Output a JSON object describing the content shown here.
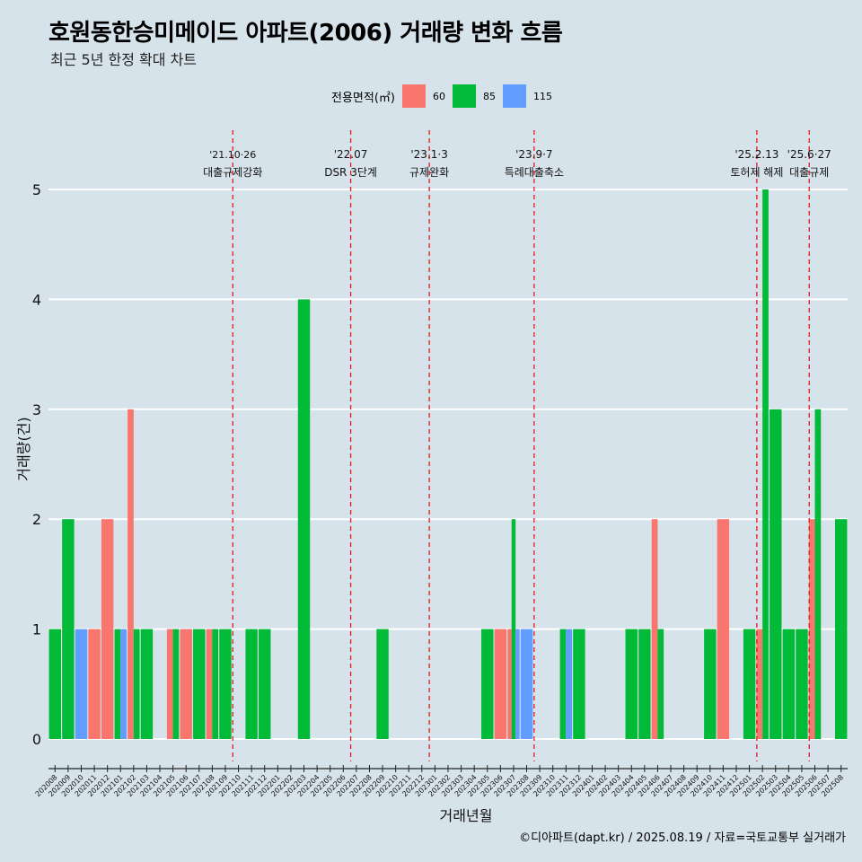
{
  "header": {
    "title": "호원동한승미메이드 아파트(2006) 거래량 변화 흐름",
    "subtitle": "최근 5년 한정 확대 차트"
  },
  "legend": {
    "title": "전용면적(㎡)",
    "items": [
      {
        "label": "60",
        "color": "#f8766d"
      },
      {
        "label": "85",
        "color": "#00ba38"
      },
      {
        "label": "115",
        "color": "#619cff"
      }
    ]
  },
  "caption": "©디아파트(dapt.kr) / 2025.08.19 / 자료=국토교통부 실거래가",
  "chart_data": {
    "type": "bar",
    "title": "호원동한승미메이드 아파트(2006) 거래량 변화 흐름",
    "subtitle": "최근 5년 한정 확대 차트",
    "xlabel": "거래년월",
    "ylabel": "거래량(건)",
    "ylim": [
      0,
      5
    ],
    "yticks": [
      0,
      1,
      2,
      3,
      4,
      5
    ],
    "grid": "horizontal",
    "legend_position": "top",
    "categories": [
      "202008",
      "202009",
      "202010",
      "202011",
      "202012",
      "202101",
      "202102",
      "202103",
      "202104",
      "202105",
      "202106",
      "202107",
      "202108",
      "202109",
      "202110",
      "202111",
      "202112",
      "202201",
      "202202",
      "202203",
      "202204",
      "202205",
      "202206",
      "202207",
      "202208",
      "202209",
      "202210",
      "202211",
      "202212",
      "202301",
      "202302",
      "202303",
      "202304",
      "202305",
      "202306",
      "202307",
      "202308",
      "202309",
      "202310",
      "202311",
      "202312",
      "202401",
      "202402",
      "202403",
      "202404",
      "202405",
      "202406",
      "202407",
      "202408",
      "202409",
      "202410",
      "202411",
      "202412",
      "202501",
      "202502",
      "202503",
      "202504",
      "202505",
      "202506",
      "202507",
      "202508"
    ],
    "series": [
      {
        "name": "60",
        "color": "#f8766d",
        "values": [
          0,
          0,
          0,
          1,
          2,
          0,
          3,
          0,
          0,
          1,
          1,
          0,
          1,
          0,
          0,
          0,
          0,
          0,
          0,
          0,
          0,
          0,
          0,
          0,
          0,
          0,
          0,
          0,
          0,
          0,
          0,
          0,
          0,
          0,
          1,
          1,
          0,
          0,
          0,
          0,
          0,
          0,
          0,
          0,
          0,
          0,
          2,
          0,
          0,
          0,
          0,
          2,
          0,
          0,
          1,
          0,
          0,
          0,
          2,
          0,
          0
        ]
      },
      {
        "name": "85",
        "color": "#00ba38",
        "values": [
          1,
          2,
          0,
          0,
          0,
          1,
          1,
          1,
          0,
          1,
          0,
          1,
          1,
          1,
          0,
          1,
          1,
          0,
          0,
          4,
          0,
          0,
          0,
          0,
          0,
          1,
          0,
          0,
          0,
          0,
          0,
          0,
          0,
          1,
          0,
          2,
          0,
          0,
          0,
          1,
          1,
          0,
          0,
          0,
          1,
          1,
          1,
          0,
          0,
          0,
          1,
          0,
          0,
          1,
          5,
          3,
          1,
          1,
          3,
          0,
          2
        ]
      },
      {
        "name": "115",
        "color": "#619cff",
        "values": [
          0,
          0,
          1,
          0,
          0,
          1,
          0,
          0,
          0,
          0,
          0,
          0,
          0,
          0,
          0,
          0,
          0,
          0,
          0,
          0,
          0,
          0,
          0,
          0,
          0,
          0,
          0,
          0,
          0,
          0,
          0,
          0,
          0,
          0,
          0,
          1,
          1,
          0,
          0,
          1,
          0,
          0,
          0,
          0,
          0,
          0,
          0,
          0,
          0,
          0,
          0,
          0,
          0,
          0,
          0,
          0,
          0,
          0,
          0,
          0,
          0
        ]
      }
    ],
    "annotations": [
      {
        "x": "202110",
        "line1": "'21.10·26",
        "line2": "대출규제강화"
      },
      {
        "x": "202207",
        "line1": "'22.07",
        "line2": "DSR 3단계"
      },
      {
        "x": "202301",
        "line1": "'23.1·3",
        "line2": "규제완화"
      },
      {
        "x": "202309",
        "line1": "'23.9·7",
        "line2": "특례대출축소"
      },
      {
        "x": "202502",
        "line1": "'25.2.13",
        "line2": "토허제 해제"
      },
      {
        "x": "202506",
        "line1": "'25.6·27",
        "line2": "대출규제"
      }
    ]
  }
}
